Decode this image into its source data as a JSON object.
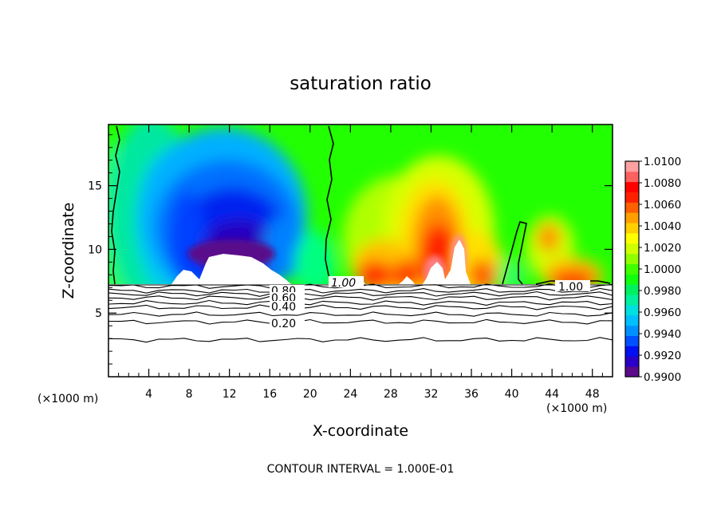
{
  "chart_data": {
    "type": "heatmap",
    "title": "saturation ratio",
    "xlabel": "X-coordinate",
    "ylabel": "Z-coordinate",
    "x_unit": "(×1000 m)",
    "x_unit_right": "(×1000 m)",
    "xlim": [
      0,
      50
    ],
    "ylim": [
      0,
      19.8
    ],
    "xticks": [
      4,
      8,
      12,
      16,
      20,
      24,
      28,
      32,
      36,
      40,
      44,
      48
    ],
    "yticks": [
      5,
      10,
      15
    ],
    "footer": "CONTOUR INTERVAL = 1.000E-01",
    "colorbar": {
      "levels": [
        0.99,
        0.991,
        0.992,
        0.993,
        0.994,
        0.995,
        0.996,
        0.997,
        0.998,
        0.999,
        1.0,
        1.001,
        1.002,
        1.003,
        1.004,
        1.005,
        1.006,
        1.007,
        1.008,
        1.009,
        1.01
      ],
      "labels": [
        "0.9900",
        "0.9920",
        "0.9940",
        "0.9960",
        "0.9980",
        "1.0000",
        "1.0020",
        "1.0040",
        "1.0060",
        "1.0080",
        "1.0100"
      ],
      "colors": [
        "#5a0a8a",
        "#2a00c8",
        "#0010f0",
        "#0050ff",
        "#0090ff",
        "#00c0ff",
        "#00e0e0",
        "#00f0a0",
        "#00f060",
        "#10ff10",
        "#40ff00",
        "#90ff00",
        "#d0ff00",
        "#ffff00",
        "#ffd000",
        "#ffa000",
        "#ff6000",
        "#ff2000",
        "#ff0000",
        "#ff6060",
        "#ffa0a0"
      ]
    },
    "contour_labels": [
      "1.00",
      "1.00",
      "0.80",
      "0.60",
      "0.40",
      "0.20"
    ],
    "lower_contours": [
      {
        "z": 7.1,
        "label": ""
      },
      {
        "z": 6.75,
        "label": "0.80"
      },
      {
        "z": 6.5,
        "label": ""
      },
      {
        "z": 6.2,
        "label": "0.60"
      },
      {
        "z": 5.8,
        "label": ""
      },
      {
        "z": 5.45,
        "label": "0.40"
      },
      {
        "z": 4.9,
        "label": ""
      },
      {
        "z": 4.3,
        "label": "0.20"
      },
      {
        "z": 2.9,
        "label": ""
      }
    ],
    "cloud_base_z": 7.3
  }
}
